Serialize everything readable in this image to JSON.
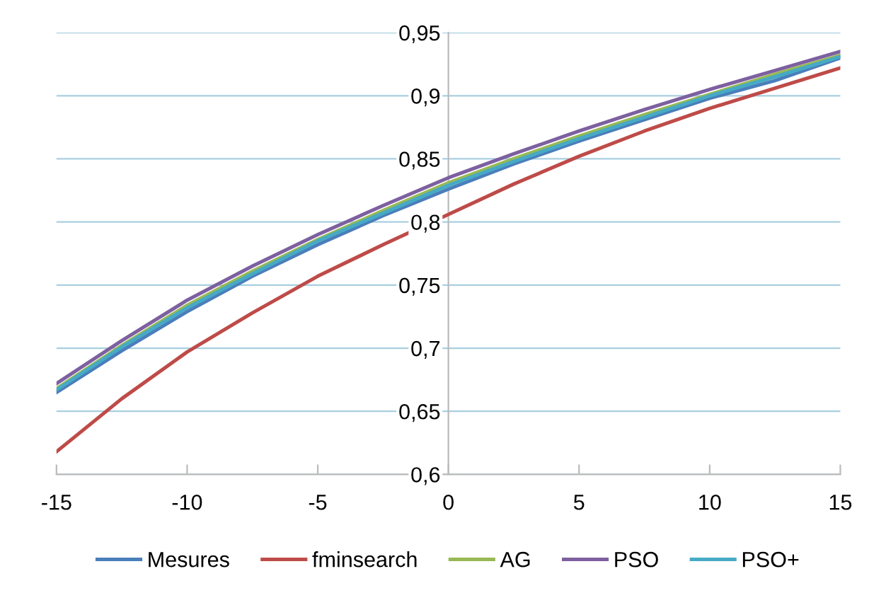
{
  "chart_data": {
    "type": "line",
    "x": [
      -15,
      -12.5,
      -10,
      -7.5,
      -5,
      -2.5,
      0,
      2.5,
      5,
      7.5,
      10,
      12.5,
      15
    ],
    "series": [
      {
        "name": "Mesures",
        "color": "#4a7ebb",
        "values": [
          0.665,
          0.698,
          0.729,
          0.757,
          0.782,
          0.805,
          0.826,
          0.846,
          0.864,
          0.881,
          0.898,
          0.912,
          0.93
        ]
      },
      {
        "name": "fminsearch",
        "color": "#be4b48",
        "values": [
          0.618,
          0.66,
          0.697,
          0.728,
          0.757,
          0.782,
          0.806,
          0.83,
          0.852,
          0.872,
          0.89,
          0.906,
          0.922
        ]
      },
      {
        "name": "AG",
        "color": "#98b954",
        "values": [
          0.668,
          0.702,
          0.734,
          0.761,
          0.786,
          0.809,
          0.831,
          0.85,
          0.868,
          0.885,
          0.901,
          0.917,
          0.932
        ]
      },
      {
        "name": "PSO",
        "color": "#7d60a0",
        "values": [
          0.672,
          0.706,
          0.738,
          0.765,
          0.79,
          0.813,
          0.835,
          0.854,
          0.872,
          0.889,
          0.905,
          0.92,
          0.935
        ]
      },
      {
        "name": "PSO+",
        "color": "#46aac5",
        "values": [
          0.667,
          0.701,
          0.732,
          0.759,
          0.785,
          0.807,
          0.829,
          0.848,
          0.866,
          0.883,
          0.9,
          0.915,
          0.931
        ]
      }
    ],
    "xlim": [
      -15,
      15
    ],
    "xticks": [
      -15,
      -10,
      -5,
      0,
      5,
      10,
      15
    ],
    "ylim": [
      0.6,
      0.95
    ],
    "yticks": [
      {
        "value": 0.6,
        "label": "0,6"
      },
      {
        "value": 0.65,
        "label": "0,65"
      },
      {
        "value": 0.7,
        "label": "0,7"
      },
      {
        "value": 0.75,
        "label": "0,75"
      },
      {
        "value": 0.8,
        "label": "0,8"
      },
      {
        "value": 0.85,
        "label": "0,85"
      },
      {
        "value": 0.9,
        "label": "0,9"
      },
      {
        "value": 0.95,
        "label": "0,95"
      }
    ],
    "grid": "y",
    "legend": "bottom",
    "marker": "none",
    "line_style": "solid"
  }
}
